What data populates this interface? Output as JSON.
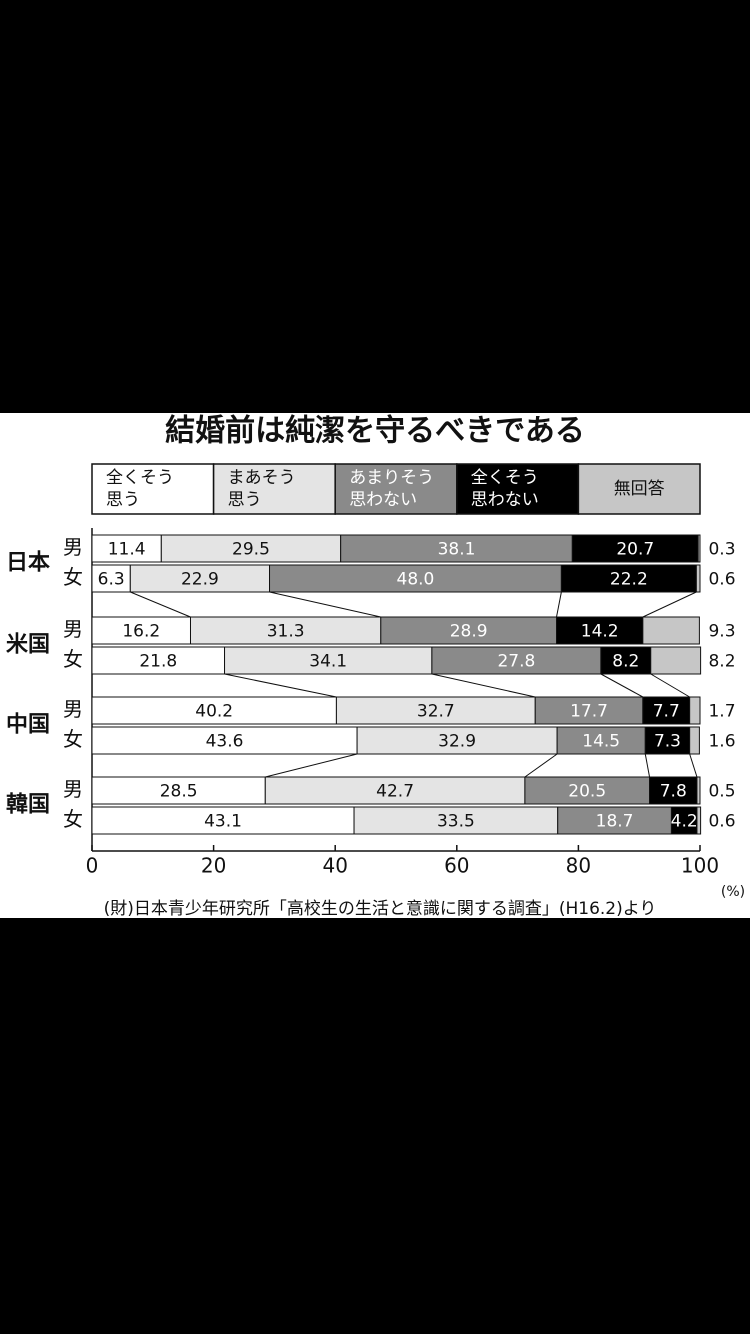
{
  "chart_data": {
    "type": "stacked-bar-horizontal",
    "title": "結婚前は純潔を守るべきである",
    "groups": [
      "日本",
      "米国",
      "中国",
      "韓国"
    ],
    "categories": [
      "男",
      "女",
      "男",
      "女",
      "男",
      "女",
      "男",
      "女"
    ],
    "series": [
      {
        "name": "全くそう\n思う",
        "color": "#ffffff",
        "values": [
          11.4,
          6.3,
          16.2,
          21.8,
          40.2,
          43.6,
          28.5,
          43.1
        ]
      },
      {
        "name": "まあそう\n思う",
        "color": "#e4e4e4",
        "values": [
          29.5,
          22.9,
          31.3,
          34.1,
          32.7,
          32.9,
          42.7,
          33.5
        ]
      },
      {
        "name": "あまりそう\n思わない",
        "color": "#8a8a8a",
        "values": [
          38.1,
          48.0,
          28.9,
          27.8,
          17.7,
          14.5,
          20.5,
          18.7
        ],
        "value_labels": [
          "38.1",
          "48.0",
          "28.9",
          "27.8",
          "17.7",
          "14.5",
          "20.5",
          "18.7"
        ]
      },
      {
        "name": "全くそう\n思わない",
        "color": "#000000",
        "values": [
          20.7,
          22.2,
          14.2,
          8.2,
          7.7,
          7.3,
          7.8,
          4.2
        ]
      },
      {
        "name": "無回答",
        "color": "#c6c6c6",
        "values": [
          0.3,
          0.6,
          9.3,
          8.2,
          1.7,
          1.6,
          0.5,
          0.6
        ]
      }
    ],
    "xlim": [
      0,
      100
    ],
    "xticks": [
      0,
      20,
      40,
      60,
      80,
      100
    ],
    "unit": "(%)",
    "source": "(財)日本青少年研究所「高校生の生活と意識に関する調査」(H16.2)より"
  }
}
